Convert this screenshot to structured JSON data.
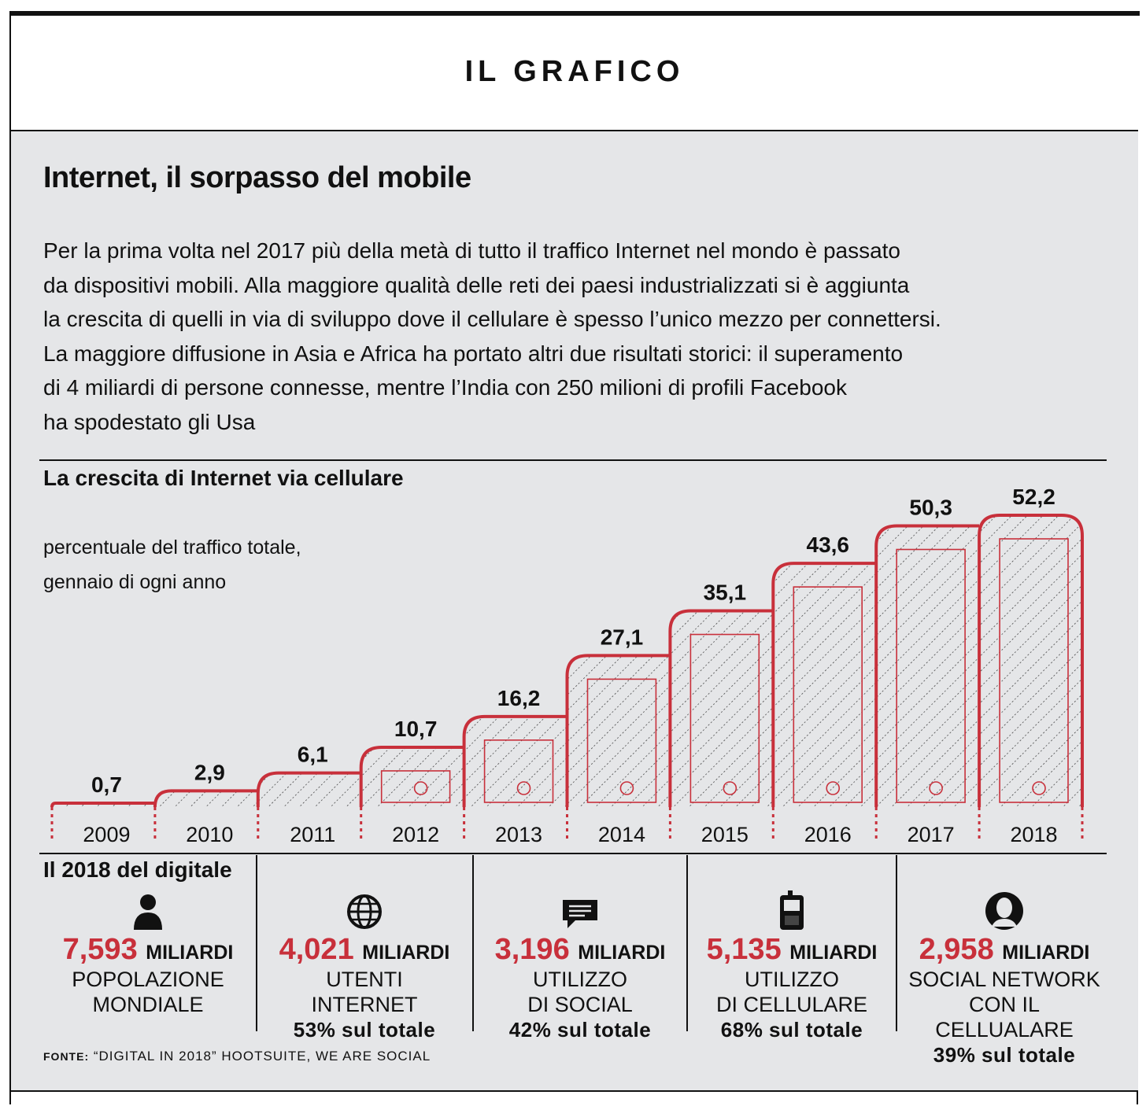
{
  "header": {
    "title": "IL GRAFICO"
  },
  "main": {
    "title": "Internet, il sorpasso del mobile",
    "intro_lines": [
      "Per la prima volta nel 2017 più della metà di tutto il traffico Internet nel mondo è passato",
      "da dispositivi mobili. Alla maggiore qualità delle reti dei paesi industrializzati si è aggiunta",
      "la crescita di quelli in via di sviluppo dove il cellulare è spesso l’unico mezzo per connettersi.",
      "La maggiore diffusione in Asia e Africa ha portato altri due risultati storici: il superamento",
      "di 4 miliardi di persone connesse, mentre l’India con 250 milioni di profili Facebook",
      "ha spodestato gli Usa"
    ]
  },
  "chart_data": {
    "type": "bar",
    "title": "La crescita di Internet via cellulare",
    "ylabel_lines": [
      "percentuale del traffico totale,",
      "gennaio di ogni anno"
    ],
    "categories": [
      "2009",
      "2010",
      "2011",
      "2012",
      "2013",
      "2014",
      "2015",
      "2016",
      "2017",
      "2018"
    ],
    "values": [
      0.7,
      2.9,
      6.1,
      10.7,
      16.2,
      27.1,
      35.1,
      43.6,
      50.3,
      52.2
    ],
    "value_labels": [
      "0,7",
      "2,9",
      "6,1",
      "10,7",
      "16,2",
      "27,1",
      "35,1",
      "43,6",
      "50,3",
      "52,2"
    ],
    "ylim": [
      0,
      52.2
    ],
    "grid": false,
    "colors": {
      "outline": "#c8303b",
      "hatch": "#222222",
      "background": "#e5e6e8"
    }
  },
  "digital": {
    "title": "Il 2018 del digitale",
    "stats": [
      {
        "icon": "person-icon",
        "number": "7,593",
        "unit": "MILIARDI",
        "label_lines": [
          "POPOLAZIONE",
          "MONDIALE"
        ],
        "pct": ""
      },
      {
        "icon": "globe-icon",
        "number": "4,021",
        "unit": "MILIARDI",
        "label_lines": [
          "UTENTI",
          "INTERNET"
        ],
        "pct": "53% sul totale"
      },
      {
        "icon": "chat-icon",
        "number": "3,196",
        "unit": "MILIARDI",
        "label_lines": [
          "UTILIZZO",
          "DI SOCIAL"
        ],
        "pct": "42% sul totale"
      },
      {
        "icon": "cellphone-icon",
        "number": "5,135",
        "unit": "MILIARDI",
        "label_lines": [
          "UTILIZZO",
          "DI CELLULARE"
        ],
        "pct": "68% sul totale"
      },
      {
        "icon": "profile-icon",
        "number": "2,958",
        "unit": "MILIARDI",
        "label_lines": [
          "SOCIAL NETWORK",
          "CON IL CELLUALARE"
        ],
        "pct": "39% sul totale"
      }
    ]
  },
  "source": {
    "prefix": "FONTE:",
    "text": "“DIGITAL IN 2018” HOOTSUITE, WE ARE SOCIAL"
  },
  "colors": {
    "accent": "#c8303b",
    "panel": "#e5e6e8",
    "text": "#111111"
  }
}
